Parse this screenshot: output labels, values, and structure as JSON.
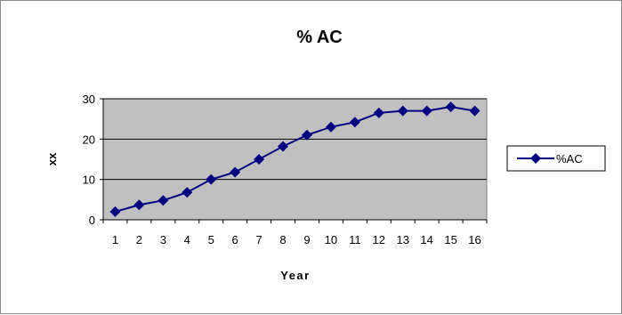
{
  "chart_data": {
    "type": "line",
    "title": "% AC",
    "xlabel": "Year",
    "ylabel": "xx",
    "x": [
      1,
      2,
      3,
      4,
      5,
      6,
      7,
      8,
      9,
      10,
      11,
      12,
      13,
      14,
      15,
      16
    ],
    "series": [
      {
        "name": "%AC",
        "values": [
          2,
          3.7,
          4.8,
          6.8,
          10,
          11.8,
          15,
          18.2,
          21,
          23,
          24.2,
          26.5,
          27,
          27,
          28,
          27
        ]
      }
    ],
    "ylim": [
      0,
      30
    ],
    "yticks": [
      0,
      10,
      20,
      30
    ],
    "grid": "horizontal",
    "legend_position": "right",
    "colors": {
      "line": "#000080",
      "marker": "#000080",
      "plot_background": "#c0c0c0",
      "gridline": "#000000"
    },
    "marker": "diamond"
  }
}
